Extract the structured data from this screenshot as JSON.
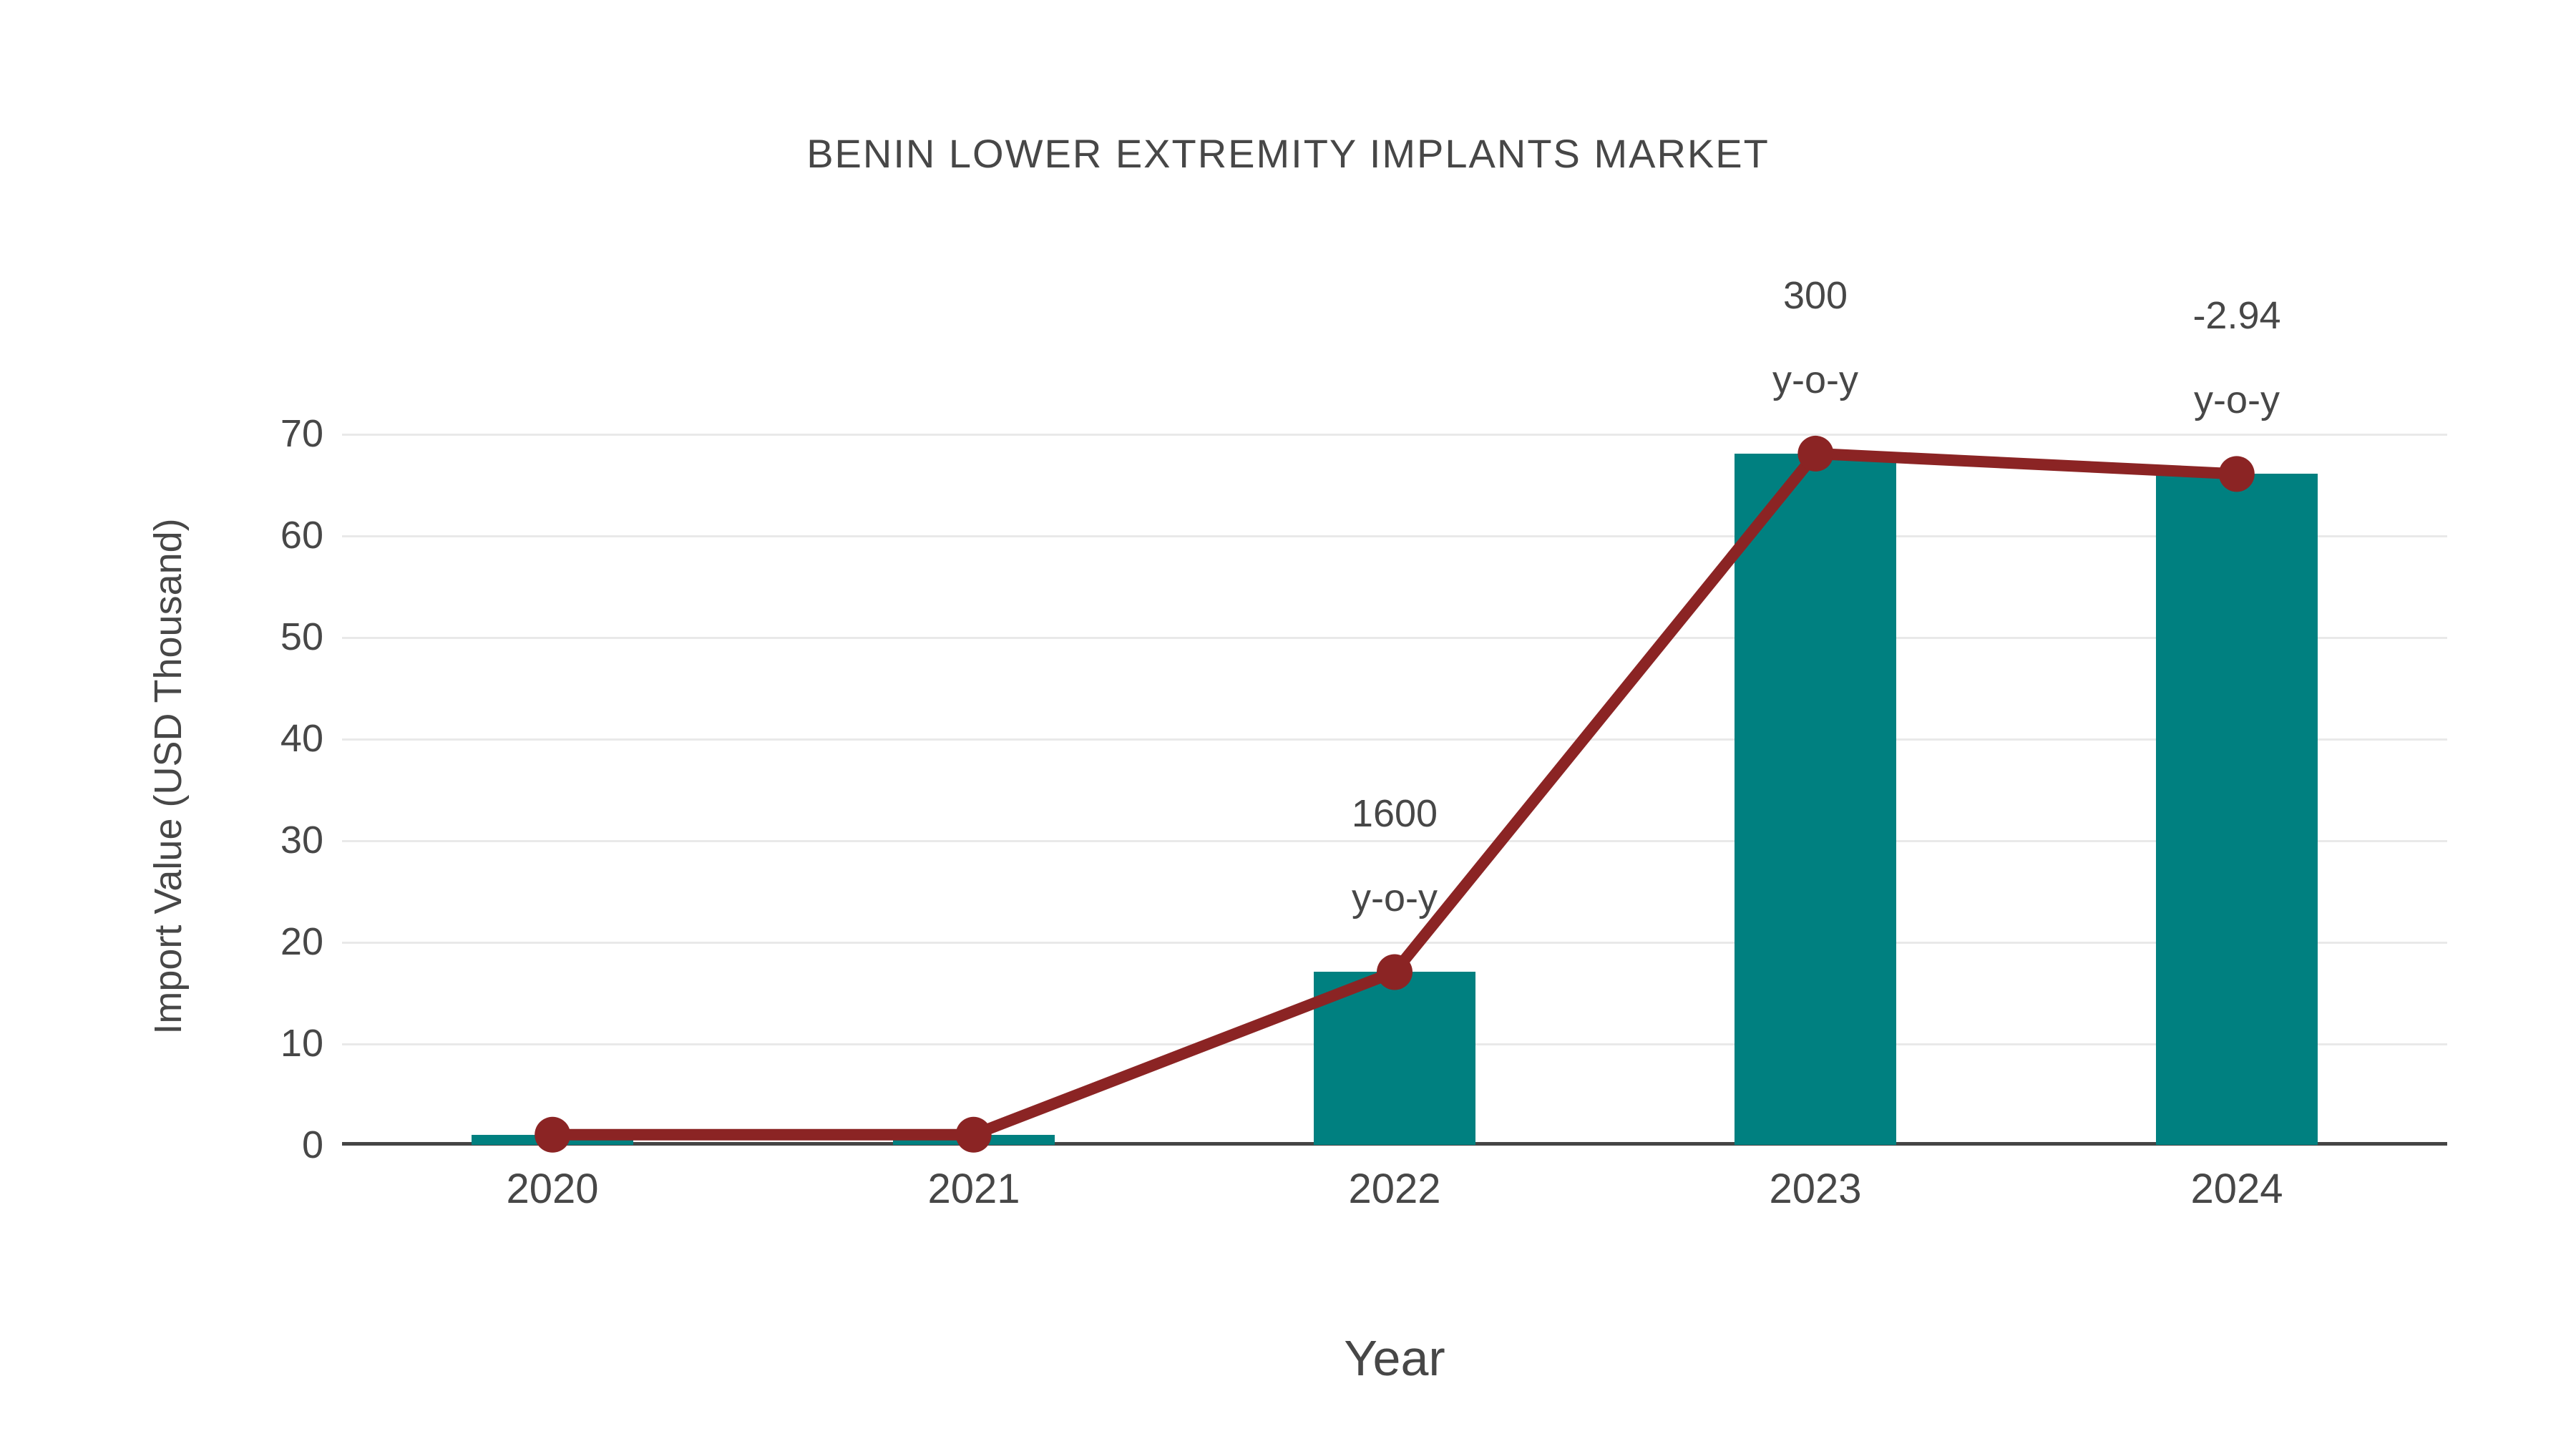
{
  "chart_data": {
    "type": "bar",
    "title": "BENIN LOWER EXTREMITY IMPLANTS MARKET",
    "xlabel": "Year",
    "ylabel": "Import Value (USD Thousand)",
    "categories": [
      "2020",
      "2021",
      "2022",
      "2023",
      "2024"
    ],
    "series": [
      {
        "name": "import-value-bars",
        "type": "bar",
        "color": "#008080",
        "values": [
          1,
          1,
          17,
          68,
          66
        ]
      },
      {
        "name": "import-value-trend-line",
        "type": "line",
        "color": "#8B2424",
        "values": [
          1,
          1,
          17,
          68,
          66
        ]
      }
    ],
    "annotations": [
      {
        "category": "2022",
        "lines": [
          "1600",
          "y-o-y"
        ]
      },
      {
        "category": "2023",
        "lines": [
          "300",
          "y-o-y"
        ]
      },
      {
        "category": "2024",
        "lines": [
          "-2.94",
          "y-o-y"
        ]
      }
    ],
    "yticks": [
      0,
      10,
      20,
      30,
      40,
      50,
      60,
      70
    ],
    "ylim": [
      0,
      72.5
    ],
    "grid": true,
    "legend_position": "none",
    "colors": {
      "bar": "#008080",
      "line": "#8B2424",
      "marker": "#8B2424",
      "text": "#474747",
      "gridline": "#e9e9e9",
      "axis_line": "#454545",
      "background": "#ffffff"
    }
  }
}
